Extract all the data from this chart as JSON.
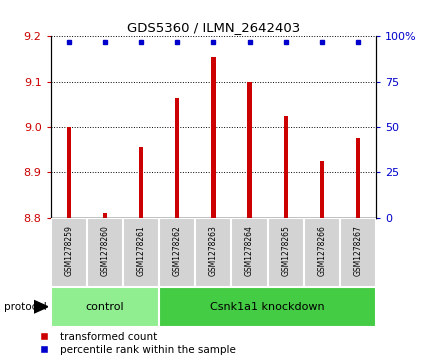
{
  "title": "GDS5360 / ILMN_2642403",
  "samples": [
    "GSM1278259",
    "GSM1278260",
    "GSM1278261",
    "GSM1278262",
    "GSM1278263",
    "GSM1278264",
    "GSM1278265",
    "GSM1278266",
    "GSM1278267"
  ],
  "bar_values": [
    9.0,
    8.81,
    8.955,
    9.065,
    9.155,
    9.1,
    9.025,
    8.925,
    8.975
  ],
  "percentile_values": [
    100,
    100,
    100,
    100,
    100,
    100,
    100,
    100,
    100
  ],
  "bar_color": "#cc0000",
  "percentile_color": "#0000cc",
  "ylim_left": [
    8.8,
    9.2
  ],
  "ylim_right": [
    0,
    100
  ],
  "yticks_left": [
    8.8,
    8.9,
    9.0,
    9.1,
    9.2
  ],
  "yticks_right": [
    0,
    25,
    50,
    75,
    100
  ],
  "groups": [
    {
      "label": "control",
      "samples": [
        0,
        1,
        2
      ],
      "color": "#90ee90"
    },
    {
      "label": "Csnk1a1 knockdown",
      "samples": [
        3,
        4,
        5,
        6,
        7,
        8
      ],
      "color": "#44cc44"
    }
  ],
  "protocol_label": "protocol",
  "background_color": "#d3d3d3",
  "plot_bg": "#ffffff",
  "legend_items": [
    {
      "label": "transformed count",
      "color": "#cc0000"
    },
    {
      "label": "percentile rank within the sample",
      "color": "#0000cc"
    }
  ],
  "bar_width": 0.12
}
